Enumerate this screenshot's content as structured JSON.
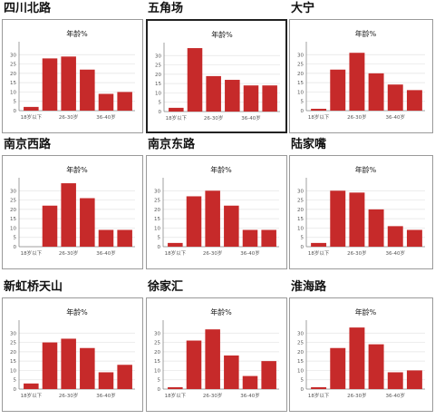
{
  "chart_data": [
    {
      "type": "bar",
      "district": "四川北路",
      "title": "年龄%",
      "tick_labels": [
        "18岁以下",
        "26-30岁",
        "36-40岁"
      ],
      "yticks": [
        0,
        5,
        10,
        15,
        20,
        25,
        30
      ],
      "ylim": [
        0,
        35
      ],
      "values": [
        2,
        28,
        29,
        22,
        9,
        10
      ],
      "color": "#c62a2a"
    },
    {
      "type": "bar",
      "district": "五角场",
      "title": "年龄%",
      "tick_labels": [
        "18岁以下",
        "26-30岁",
        "36-40岁"
      ],
      "yticks": [
        0,
        5,
        10,
        15,
        20,
        25,
        30
      ],
      "ylim": [
        0,
        35
      ],
      "values": [
        2,
        34,
        19,
        17,
        14,
        14
      ],
      "color": "#c62a2a"
    },
    {
      "type": "bar",
      "district": "大宁",
      "title": "年龄%",
      "tick_labels": [
        "18岁以下",
        "26-30岁",
        "36-40岁"
      ],
      "yticks": [
        0,
        5,
        10,
        15,
        20,
        25,
        30
      ],
      "ylim": [
        0,
        35
      ],
      "values": [
        1,
        22,
        31,
        20,
        14,
        11
      ],
      "color": "#c62a2a"
    },
    {
      "type": "bar",
      "district": "南京西路",
      "title": "年龄%",
      "tick_labels": [
        "18岁以下",
        "26-30岁",
        "36-40岁"
      ],
      "yticks": [
        0,
        5,
        10,
        15,
        20,
        25,
        30
      ],
      "ylim": [
        0,
        35
      ],
      "values": [
        0,
        22,
        34,
        26,
        9,
        9
      ],
      "color": "#c62a2a"
    },
    {
      "type": "bar",
      "district": "南京东路",
      "title": "年龄%",
      "tick_labels": [
        "18岁以下",
        "26-30岁",
        "36-40岁"
      ],
      "yticks": [
        0,
        5,
        10,
        15,
        20,
        25,
        30
      ],
      "ylim": [
        0,
        35
      ],
      "values": [
        2,
        27,
        30,
        22,
        9,
        9
      ],
      "color": "#c62a2a"
    },
    {
      "type": "bar",
      "district": "陆家嘴",
      "title": "年龄%",
      "tick_labels": [
        "18岁以下",
        "26-30岁",
        "36-40岁"
      ],
      "yticks": [
        0,
        5,
        10,
        15,
        20,
        25,
        30
      ],
      "ylim": [
        0,
        35
      ],
      "values": [
        2,
        30,
        29,
        20,
        11,
        9
      ],
      "color": "#c62a2a"
    },
    {
      "type": "bar",
      "district": "新虹桥天山",
      "title": "年龄%",
      "tick_labels": [
        "18岁以下",
        "26-30岁",
        "36-40岁"
      ],
      "yticks": [
        0,
        5,
        10,
        15,
        20,
        25,
        30
      ],
      "ylim": [
        0,
        35
      ],
      "values": [
        3,
        25,
        27,
        22,
        9,
        13
      ],
      "color": "#c62a2a"
    },
    {
      "type": "bar",
      "district": "徐家汇",
      "title": "年龄%",
      "tick_labels": [
        "18岁以下",
        "26-30岁",
        "36-40岁"
      ],
      "yticks": [
        0,
        5,
        10,
        15,
        20,
        25,
        30
      ],
      "ylim": [
        0,
        35
      ],
      "values": [
        1,
        26,
        32,
        18,
        7,
        15
      ],
      "color": "#c62a2a"
    },
    {
      "type": "bar",
      "district": "淮海路",
      "title": "年龄%",
      "tick_labels": [
        "18岁以下",
        "26-30岁",
        "36-40岁"
      ],
      "yticks": [
        0,
        5,
        10,
        15,
        20,
        25,
        30
      ],
      "ylim": [
        0,
        35
      ],
      "values": [
        1,
        22,
        33,
        24,
        9,
        10
      ],
      "color": "#c62a2a"
    }
  ]
}
